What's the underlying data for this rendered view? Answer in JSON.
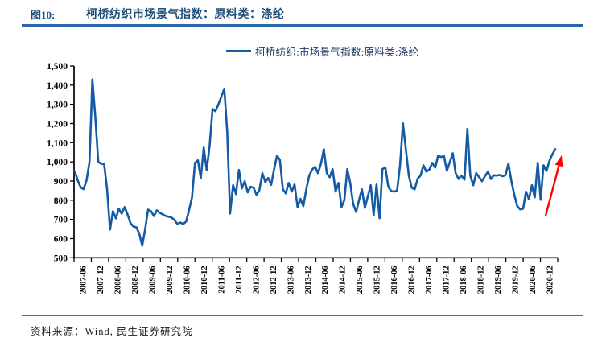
{
  "header": {
    "tag": "图10:",
    "title": "柯桥纺织市场景气指数：原料类：涤纶"
  },
  "legend": {
    "label": "柯桥纺织:市场景气指数:原料类:涤纶"
  },
  "footer": {
    "source": "资料来源：Wind, 民生证券研究院"
  },
  "colors": {
    "line": "#145AA5",
    "title": "#1F4E79",
    "header_rule": "#2A65A8",
    "footer_rule": "#2E74B5",
    "axis": "#000000",
    "arrow": "#FF0000"
  },
  "chart_data": {
    "type": "line",
    "title": "柯桥纺织市场景气指数：原料类：涤纶",
    "ylim": [
      500,
      1500
    ],
    "y_ticks": [
      500,
      600,
      700,
      800,
      900,
      1000,
      1100,
      1200,
      1300,
      1400,
      1500
    ],
    "x_tick_labels": [
      "2007-06",
      "2007-12",
      "2008-06",
      "2008-12",
      "2009-06",
      "2009-12",
      "2010-06",
      "2010-12",
      "2011-06",
      "2011-12",
      "2012-06",
      "2012-12",
      "2013-06",
      "2013-12",
      "2014-06",
      "2014-12",
      "2015-06",
      "2015-12",
      "2016-06",
      "2016-12",
      "2017-06",
      "2017-12",
      "2018-06",
      "2018-12",
      "2019-06",
      "2019-12",
      "2020-06",
      "2020-12"
    ],
    "grid": false,
    "legend_position": "top-center",
    "series": [
      {
        "name": "柯桥纺织:市场景气指数:原料类:涤纶",
        "start_month": "2007-06",
        "frequency": "monthly",
        "values": [
          950,
          903,
          866,
          858,
          905,
          1000,
          1430,
          1230,
          1000,
          990,
          988,
          860,
          647,
          743,
          705,
          755,
          730,
          764,
          726,
          680,
          663,
          659,
          626,
          563,
          650,
          751,
          743,
          718,
          747,
          734,
          726,
          718,
          714,
          710,
          697,
          676,
          684,
          676,
          689,
          750,
          815,
          995,
          1008,
          916,
          1075,
          957,
          1085,
          1276,
          1264,
          1300,
          1340,
          1381,
          1160,
          731,
          878,
          832,
          958,
          861,
          899,
          841,
          870,
          865,
          828,
          852,
          941,
          895,
          916,
          880,
          960,
          1033,
          1010,
          857,
          836,
          890,
          845,
          882,
          765,
          807,
          769,
          857,
          928,
          960,
          974,
          941,
          990,
          1066,
          941,
          920,
          962,
          845,
          890,
          765,
          800,
          962,
          890,
          781,
          739,
          800,
          857,
          760,
          820,
          878,
          722,
          882,
          706,
          962,
          970,
          870,
          848,
          845,
          850,
          982,
          1201,
          1066,
          928,
          865,
          857,
          911,
          928,
          982,
          949,
          960,
          995,
          970,
          1033,
          1025,
          1030,
          953,
          1000,
          1045,
          941,
          911,
          928,
          907,
          1172,
          928,
          878,
          941,
          920,
          899,
          925,
          949,
          911,
          930,
          928,
          932,
          925,
          930,
          991,
          900,
          830,
          770,
          752,
          756,
          845,
          805,
          878,
          815,
          995,
          802,
          982,
          953,
          1005,
          1040,
          1066
        ]
      }
    ],
    "annotation": {
      "type": "arrow",
      "meaning": "recent-uptrend-highlight",
      "color": "#FF0000"
    }
  }
}
